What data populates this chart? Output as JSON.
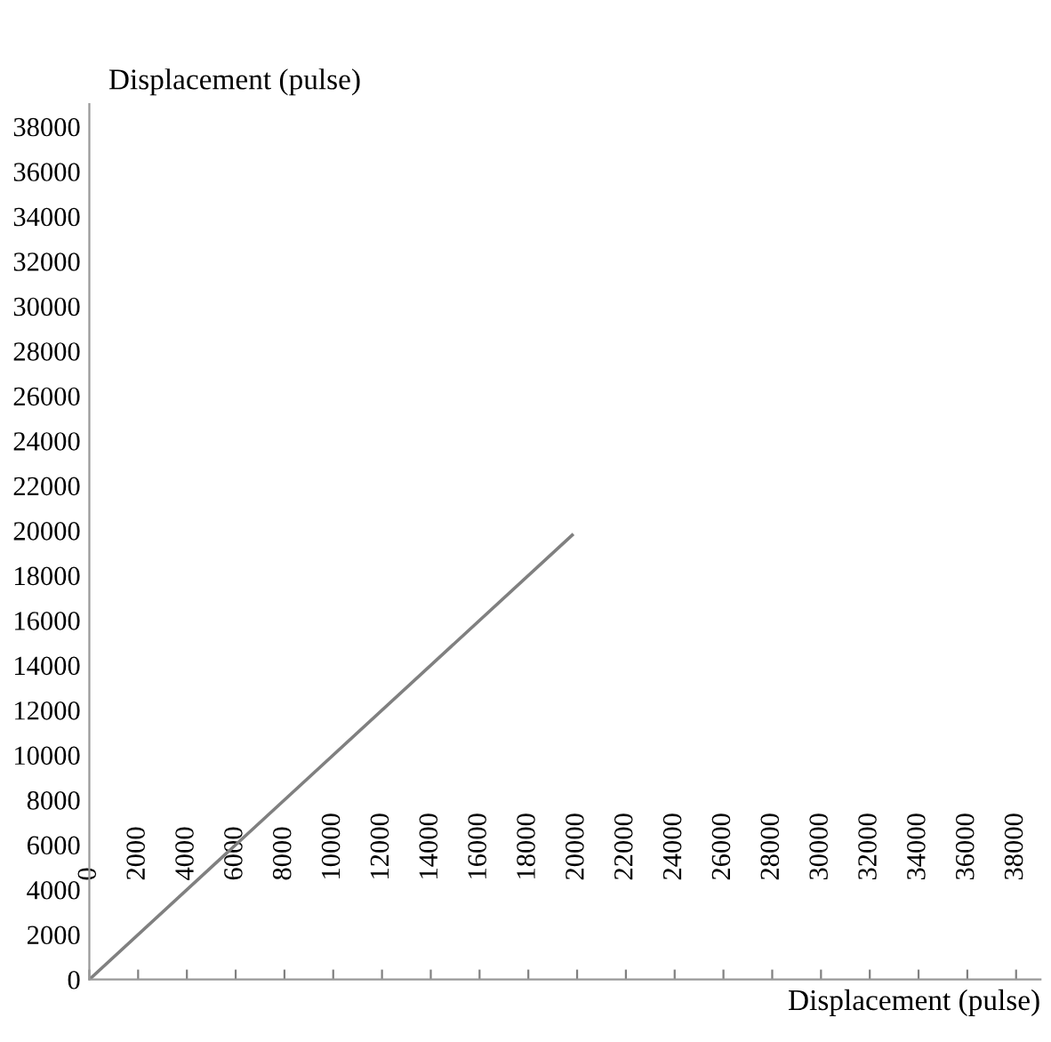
{
  "chart_data": {
    "type": "line",
    "xlabel": "Displacement (pulse)",
    "ylabel": "Displacement (pulse)",
    "x": [
      0,
      19800
    ],
    "series": [
      {
        "color": "#808080",
        "values": [
          0,
          19800
        ]
      }
    ],
    "xlim": [
      0,
      39000
    ],
    "ylim": [
      0,
      39000
    ],
    "xticks": [
      0,
      2000,
      4000,
      6000,
      8000,
      10000,
      12000,
      14000,
      16000,
      18000,
      20000,
      22000,
      24000,
      26000,
      28000,
      30000,
      32000,
      34000,
      36000,
      38000
    ],
    "yticks": [
      0,
      2000,
      4000,
      6000,
      8000,
      10000,
      12000,
      14000,
      16000,
      18000,
      20000,
      22000,
      24000,
      26000,
      28000,
      30000,
      32000,
      34000,
      36000,
      38000
    ],
    "grid": false,
    "legend": false,
    "marker": "none",
    "line_style": "solid"
  }
}
